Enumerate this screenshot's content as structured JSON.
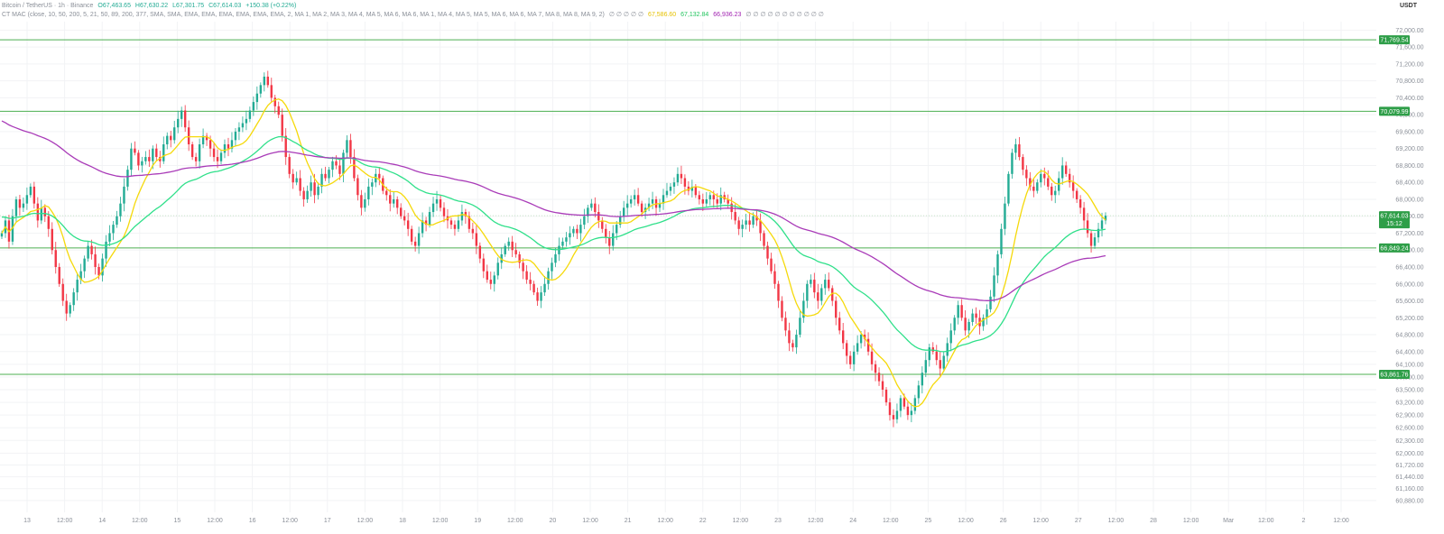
{
  "legend": {
    "symbol": "Bitcoin / TetherUS · 1h · Binance",
    "open": "O67,463.65",
    "high": "H67,630.22",
    "low": "L67,301.75",
    "close": "C67,614.03",
    "change": "+150.38 (+0.22%)",
    "indicator": "CT MAC (close, 10, 50, 200, 5, 21, 50, 89, 200, 377, SMA, SMA, EMA, EMA, EMA, EMA, EMA, EMA, 2, MA 1, MA 2, MA 3, MA 4, MA 5, MA 6, MA 6, MA 1, MA 4, MA 5, MA 5, MA 6, MA 6, MA 7, MA 8, MA 8, MA 9, 2)",
    "placeholders": "∅ ∅ ∅ ∅ ∅",
    "ma_values": [
      "67,586.60",
      "67,132.84",
      "66,936.23"
    ],
    "placeholders2": "∅ ∅ ∅ ∅ ∅ ∅ ∅ ∅ ∅ ∅ ∅"
  },
  "colors": {
    "up": "#22ab94",
    "down": "#f23645",
    "ma_fast": "#f5d90a",
    "ma_mid": "#2fe08a",
    "ma_slow": "#a93bb8",
    "level_line": "#4caf50",
    "price_label": "#2e9e48"
  },
  "chart_data": {
    "type": "candlestick",
    "quote_unit": "USDT",
    "ylim": [
      60600,
      72200
    ],
    "y_ticks": [
      72000,
      71600,
      71200,
      70800,
      70400,
      70000,
      69600,
      69200,
      68800,
      68400,
      68000,
      67600,
      67200,
      66800,
      66400,
      66000,
      65600,
      65200,
      64800,
      64400,
      64100,
      63800,
      63500,
      63200,
      62900,
      62600,
      62300,
      62000,
      61720,
      61440,
      61160,
      60880
    ],
    "x_labels": [
      "13",
      "12:00",
      "14",
      "12:00",
      "15",
      "12:00",
      "16",
      "12:00",
      "17",
      "12:00",
      "18",
      "12:00",
      "19",
      "12:00",
      "20",
      "12:00",
      "21",
      "12:00",
      "22",
      "12:00",
      "23",
      "12:00",
      "24",
      "12:00",
      "25",
      "12:00",
      "26",
      "12:00",
      "27",
      "12:00",
      "28",
      "12:00",
      "Mar",
      "12:00",
      "2",
      "12:00"
    ],
    "levels": [
      {
        "value": 71769.54,
        "label": "71,769.54"
      },
      {
        "value": 70079.99,
        "label": "70,079.99"
      },
      {
        "value": 66849.24,
        "label": "66,849.24"
      },
      {
        "value": 63861.76,
        "label": "63,861.76"
      }
    ],
    "current_price": {
      "value": 67614.03,
      "label": "67,614.03",
      "countdown": "15:12"
    },
    "candles_close": [
      67200,
      67500,
      67000,
      67600,
      68000,
      67800,
      67900,
      68100,
      68300,
      67900,
      67500,
      67800,
      67600,
      67300,
      66800,
      66400,
      66000,
      65600,
      65300,
      65500,
      65800,
      66100,
      66300,
      66600,
      66900,
      66700,
      66400,
      66200,
      66600,
      67000,
      67200,
      67400,
      67600,
      67900,
      68300,
      68700,
      69200,
      69100,
      68800,
      68900,
      69000,
      68900,
      69200,
      69000,
      68900,
      69300,
      69500,
      69400,
      69700,
      69900,
      70100,
      69700,
      69300,
      69000,
      68900,
      69300,
      69500,
      69400,
      69200,
      69000,
      68900,
      69100,
      69300,
      69200,
      69400,
      69600,
      69700,
      69800,
      69900,
      70100,
      70300,
      70500,
      70700,
      70900,
      70700,
      70400,
      70200,
      70000,
      69500,
      69000,
      68600,
      68400,
      68500,
      68200,
      68000,
      68200,
      68400,
      68100,
      68300,
      68600,
      68500,
      68700,
      68900,
      68800,
      68600,
      69100,
      69400,
      69000,
      68500,
      68100,
      67800,
      68000,
      68300,
      68400,
      68600,
      68500,
      68200,
      68100,
      67900,
      68000,
      67800,
      67600,
      67500,
      67300,
      67000,
      66900,
      67200,
      67500,
      67400,
      67700,
      67900,
      68000,
      67800,
      67600,
      67500,
      67400,
      67300,
      67500,
      67700,
      67600,
      67300,
      67200,
      66900,
      66600,
      66300,
      66100,
      66000,
      66200,
      66500,
      66700,
      66900,
      67000,
      66800,
      66700,
      66500,
      66300,
      66100,
      66000,
      65800,
      65600,
      65800,
      66000,
      66300,
      66500,
      66700,
      66900,
      67000,
      67100,
      67200,
      67300,
      67200,
      67400,
      67600,
      67800,
      67900,
      67700,
      67500,
      67300,
      67100,
      66900,
      67200,
      67400,
      67600,
      67800,
      67900,
      68000,
      68100,
      67900,
      67700,
      67800,
      67900,
      68000,
      67800,
      67900,
      68100,
      68200,
      68300,
      68400,
      68600,
      68500,
      68300,
      68200,
      68300,
      68100,
      68000,
      67900,
      68000,
      68100,
      68000,
      67900,
      68100,
      68000,
      67900,
      67700,
      67500,
      67300,
      67400,
      67500,
      67400,
      67600,
      67500,
      67200,
      66900,
      66600,
      66300,
      66000,
      65600,
      65200,
      64900,
      64600,
      64500,
      64800,
      65200,
      65600,
      66000,
      66100,
      65800,
      65600,
      65900,
      66100,
      65900,
      65600,
      65200,
      64900,
      64600,
      64300,
      64100,
      64400,
      64600,
      64800,
      64700,
      64400,
      64100,
      63900,
      63700,
      63500,
      63200,
      62900,
      62800,
      63000,
      63300,
      63100,
      62900,
      63000,
      63300,
      63600,
      63900,
      64200,
      64500,
      64400,
      64200,
      64000,
      64300,
      64600,
      64900,
      65200,
      65500,
      65200,
      64900,
      65100,
      65300,
      65200,
      65000,
      65200,
      65400,
      65700,
      66200,
      66700,
      67300,
      67900,
      68600,
      69100,
      69300,
      69000,
      68700,
      68500,
      68300,
      68200,
      68400,
      68600,
      68500,
      68300,
      68100,
      68200,
      68500,
      68800,
      68600,
      68400,
      68200,
      68000,
      67800,
      67500,
      67200,
      66900,
      67100,
      67300,
      67500,
      67614
    ],
    "series": [
      {
        "name": "MA 1",
        "value": "67,586.60"
      },
      {
        "name": "MA 2",
        "value": "67,132.84"
      },
      {
        "name": "MA 3",
        "value": "66,936.23"
      }
    ]
  }
}
